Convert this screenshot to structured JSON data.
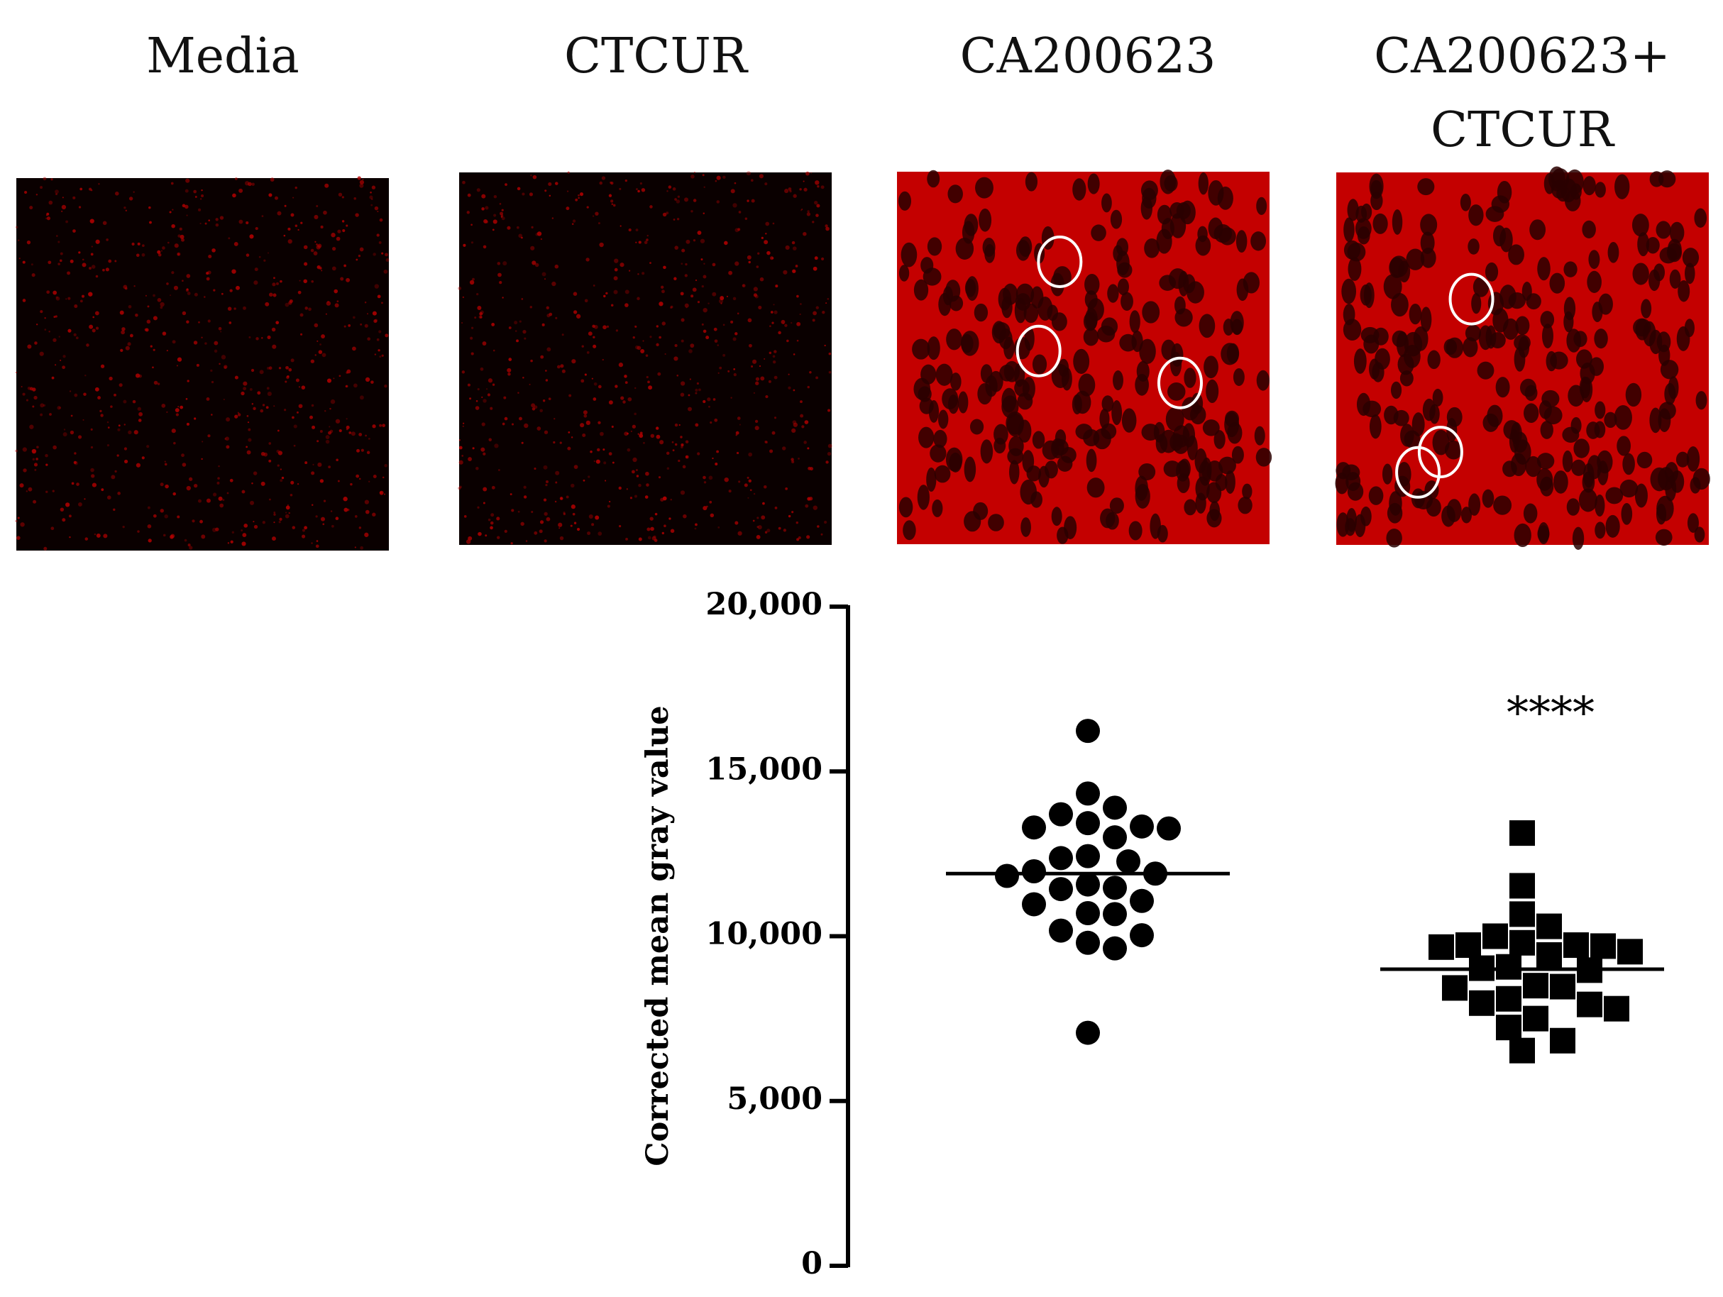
{
  "chart_data": {
    "type": "strip",
    "categories": [
      "Media",
      "CTCUR",
      "CA200623",
      "CA200623+ CTCUR"
    ],
    "y_label": "Corrected mean gray value",
    "ylim": [
      0,
      20000
    ],
    "yticks": [
      0,
      {
        "value": 5000,
        "label": "5,000"
      },
      {
        "value": 10000,
        "label": "10,000"
      },
      {
        "value": 15000,
        "label": "15,000"
      },
      {
        "value": 20000,
        "label": "20,000"
      }
    ],
    "values": [
      null,
      null,
      [
        16230,
        14330,
        13900,
        13700,
        13430,
        13330,
        13300,
        13270,
        13000,
        12430,
        12370,
        12270,
        11970,
        11900,
        11830,
        11570,
        11470,
        11430,
        11070,
        10970,
        10700,
        10670,
        10170,
        10030,
        9800,
        9630,
        7070
      ],
      [
        13130,
        11530,
        10670,
        10300,
        10000,
        9800,
        9730,
        9730,
        9700,
        9670,
        9530,
        9430,
        9070,
        9030,
        8970,
        8500,
        8470,
        8430,
        8100,
        7970,
        7930,
        7800,
        7500,
        7230,
        6830,
        6530
      ]
    ],
    "means": [
      null,
      null,
      11900,
      9000
    ],
    "markers": [
      null,
      null,
      "circle",
      "square"
    ],
    "color": "#000000",
    "annotations": [
      null,
      null,
      null,
      "****"
    ]
  }
}
